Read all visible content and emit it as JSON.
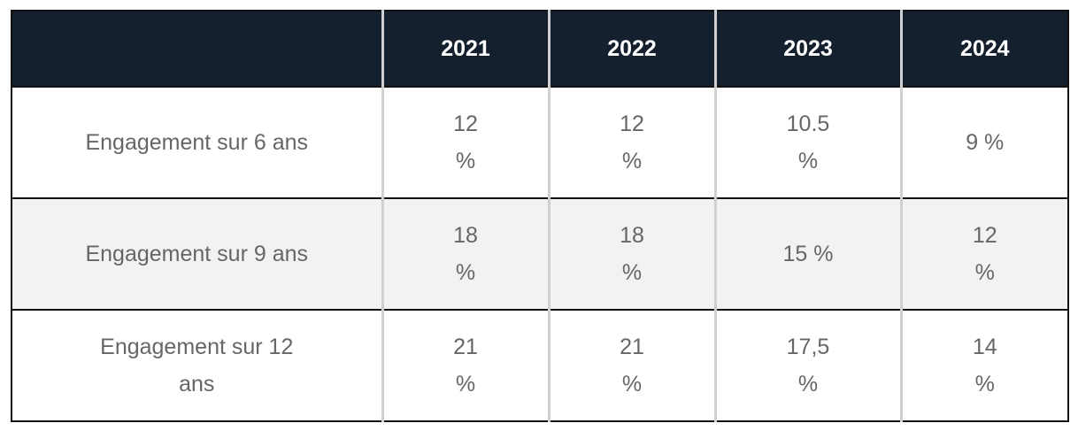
{
  "table": {
    "header": {
      "empty": "",
      "years": [
        "2021",
        "2022",
        "2023",
        "2024"
      ]
    },
    "rows": [
      {
        "label": "Engagement sur 6 ans",
        "values": [
          "12 %",
          "12 %",
          "10.5 %",
          "9 %"
        ]
      },
      {
        "label": "Engagement sur 9 ans",
        "values": [
          "18 %",
          "18 %",
          "15 %",
          "12 %"
        ]
      },
      {
        "label": "Engagement sur 12 ans",
        "values": [
          "21 %",
          "21 %",
          "17,5 %",
          "14 %"
        ]
      }
    ],
    "colors": {
      "header_background": "#15202f",
      "header_text": "#ffffff",
      "body_text": "#666666",
      "shaded_row": "#f2f2f2",
      "column_divider": "#d0d0d0"
    }
  }
}
